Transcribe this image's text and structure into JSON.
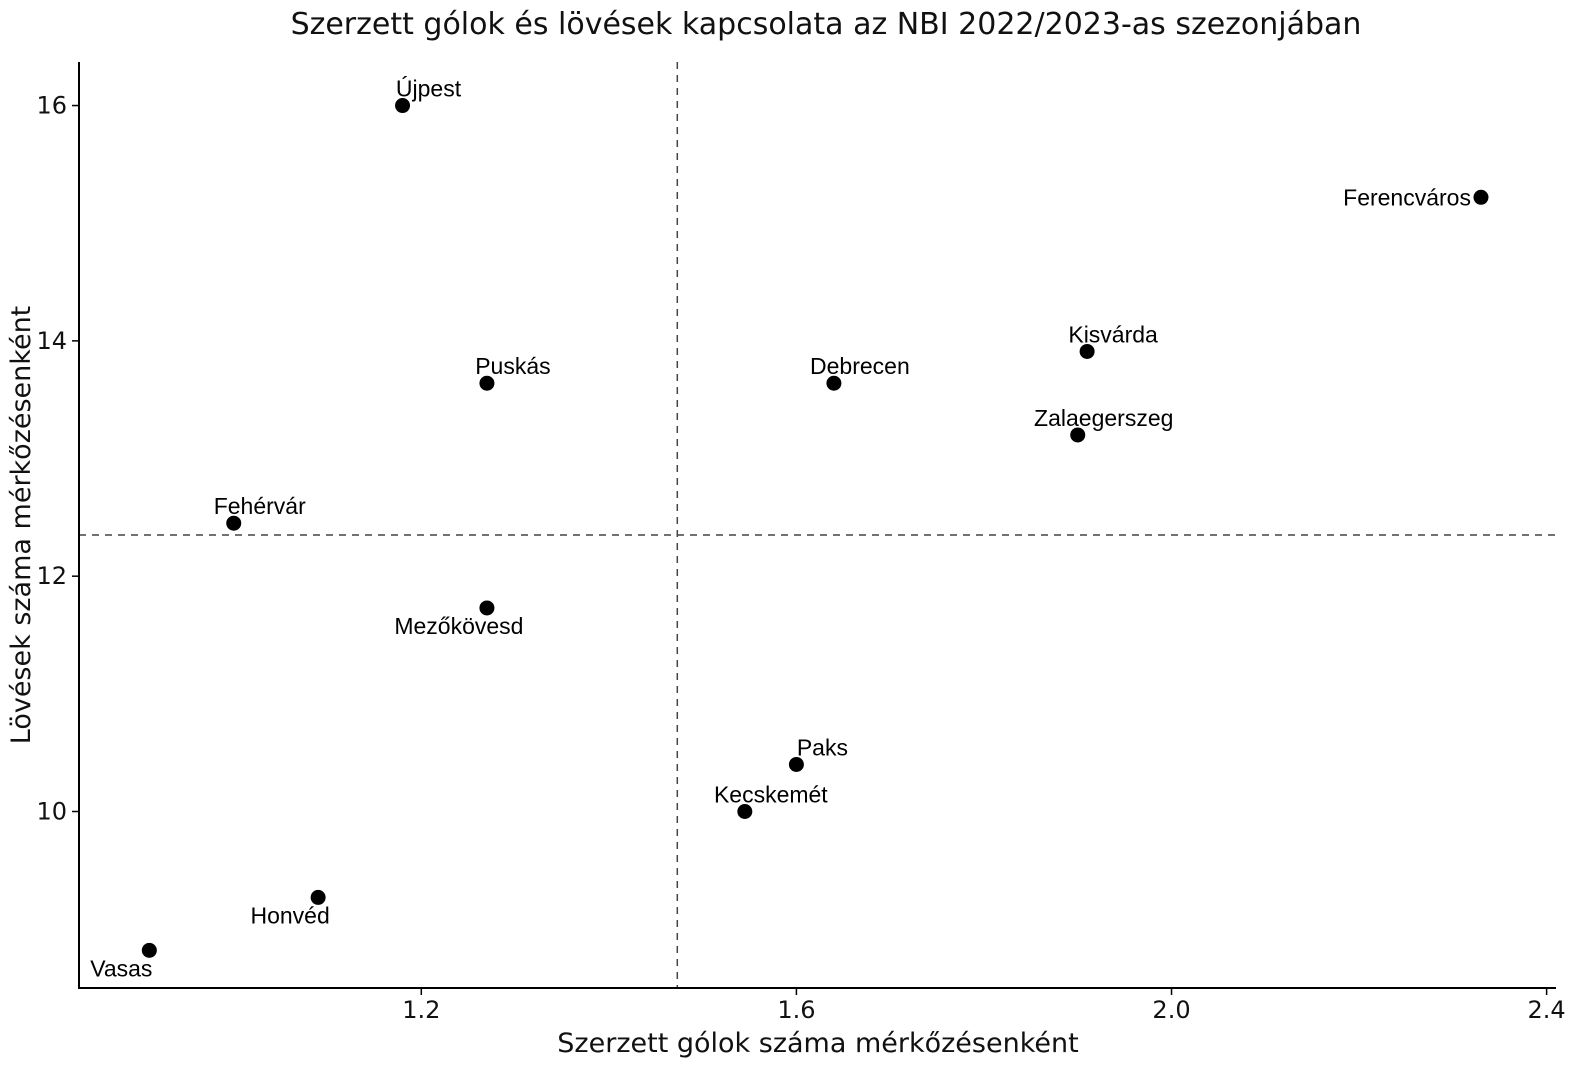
{
  "chart_data": {
    "type": "scatter",
    "title": "Szerzett gólok és lövések kapcsolata az NBI 2022/2023-as szezonjában",
    "xlabel": "Szerzett gólok száma mérkőzésenként",
    "ylabel": "Lövések száma mérkőzésenként",
    "xlim": [
      0.835,
      2.41
    ],
    "ylim": [
      8.5,
      16.37
    ],
    "x_ticks": [
      1.2,
      1.6,
      2.0,
      2.4
    ],
    "x_tick_labels": [
      "1.2",
      "1.6",
      "2.0",
      "2.4"
    ],
    "y_ticks": [
      10,
      12,
      14,
      16
    ],
    "y_tick_labels": [
      "10",
      "12",
      "14",
      "16"
    ],
    "grid": false,
    "reference_lines": {
      "x": 1.473,
      "y": 12.35,
      "style": "dashed"
    },
    "point_color": "#000000",
    "points": [
      {
        "label": "Újpest",
        "x": 1.18,
        "y": 16.0,
        "label_pos": "above-right"
      },
      {
        "label": "Ferencváros",
        "x": 2.33,
        "y": 15.22,
        "label_pos": "left"
      },
      {
        "label": "Kisvárda",
        "x": 1.91,
        "y": 13.91,
        "label_pos": "above-right"
      },
      {
        "label": "Puskás",
        "x": 1.27,
        "y": 13.64,
        "label_pos": "above-right"
      },
      {
        "label": "Debrecen",
        "x": 1.64,
        "y": 13.64,
        "label_pos": "above-right"
      },
      {
        "label": "Zalaegerszeg",
        "x": 1.9,
        "y": 13.2,
        "label_pos": "above-right"
      },
      {
        "label": "Fehérvár",
        "x": 1.0,
        "y": 12.45,
        "label_pos": "above-right"
      },
      {
        "label": "Mezőkövesd",
        "x": 1.27,
        "y": 11.73,
        "label_pos": "below-left"
      },
      {
        "label": "Paks",
        "x": 1.6,
        "y": 10.4,
        "label_pos": "above-right"
      },
      {
        "label": "Kecskemét",
        "x": 1.545,
        "y": 10.0,
        "label_pos": "above-right"
      },
      {
        "label": "Honvéd",
        "x": 1.09,
        "y": 9.27,
        "label_pos": "below-left"
      },
      {
        "label": "Vasas",
        "x": 0.91,
        "y": 8.82,
        "label_pos": "below-left"
      }
    ]
  }
}
